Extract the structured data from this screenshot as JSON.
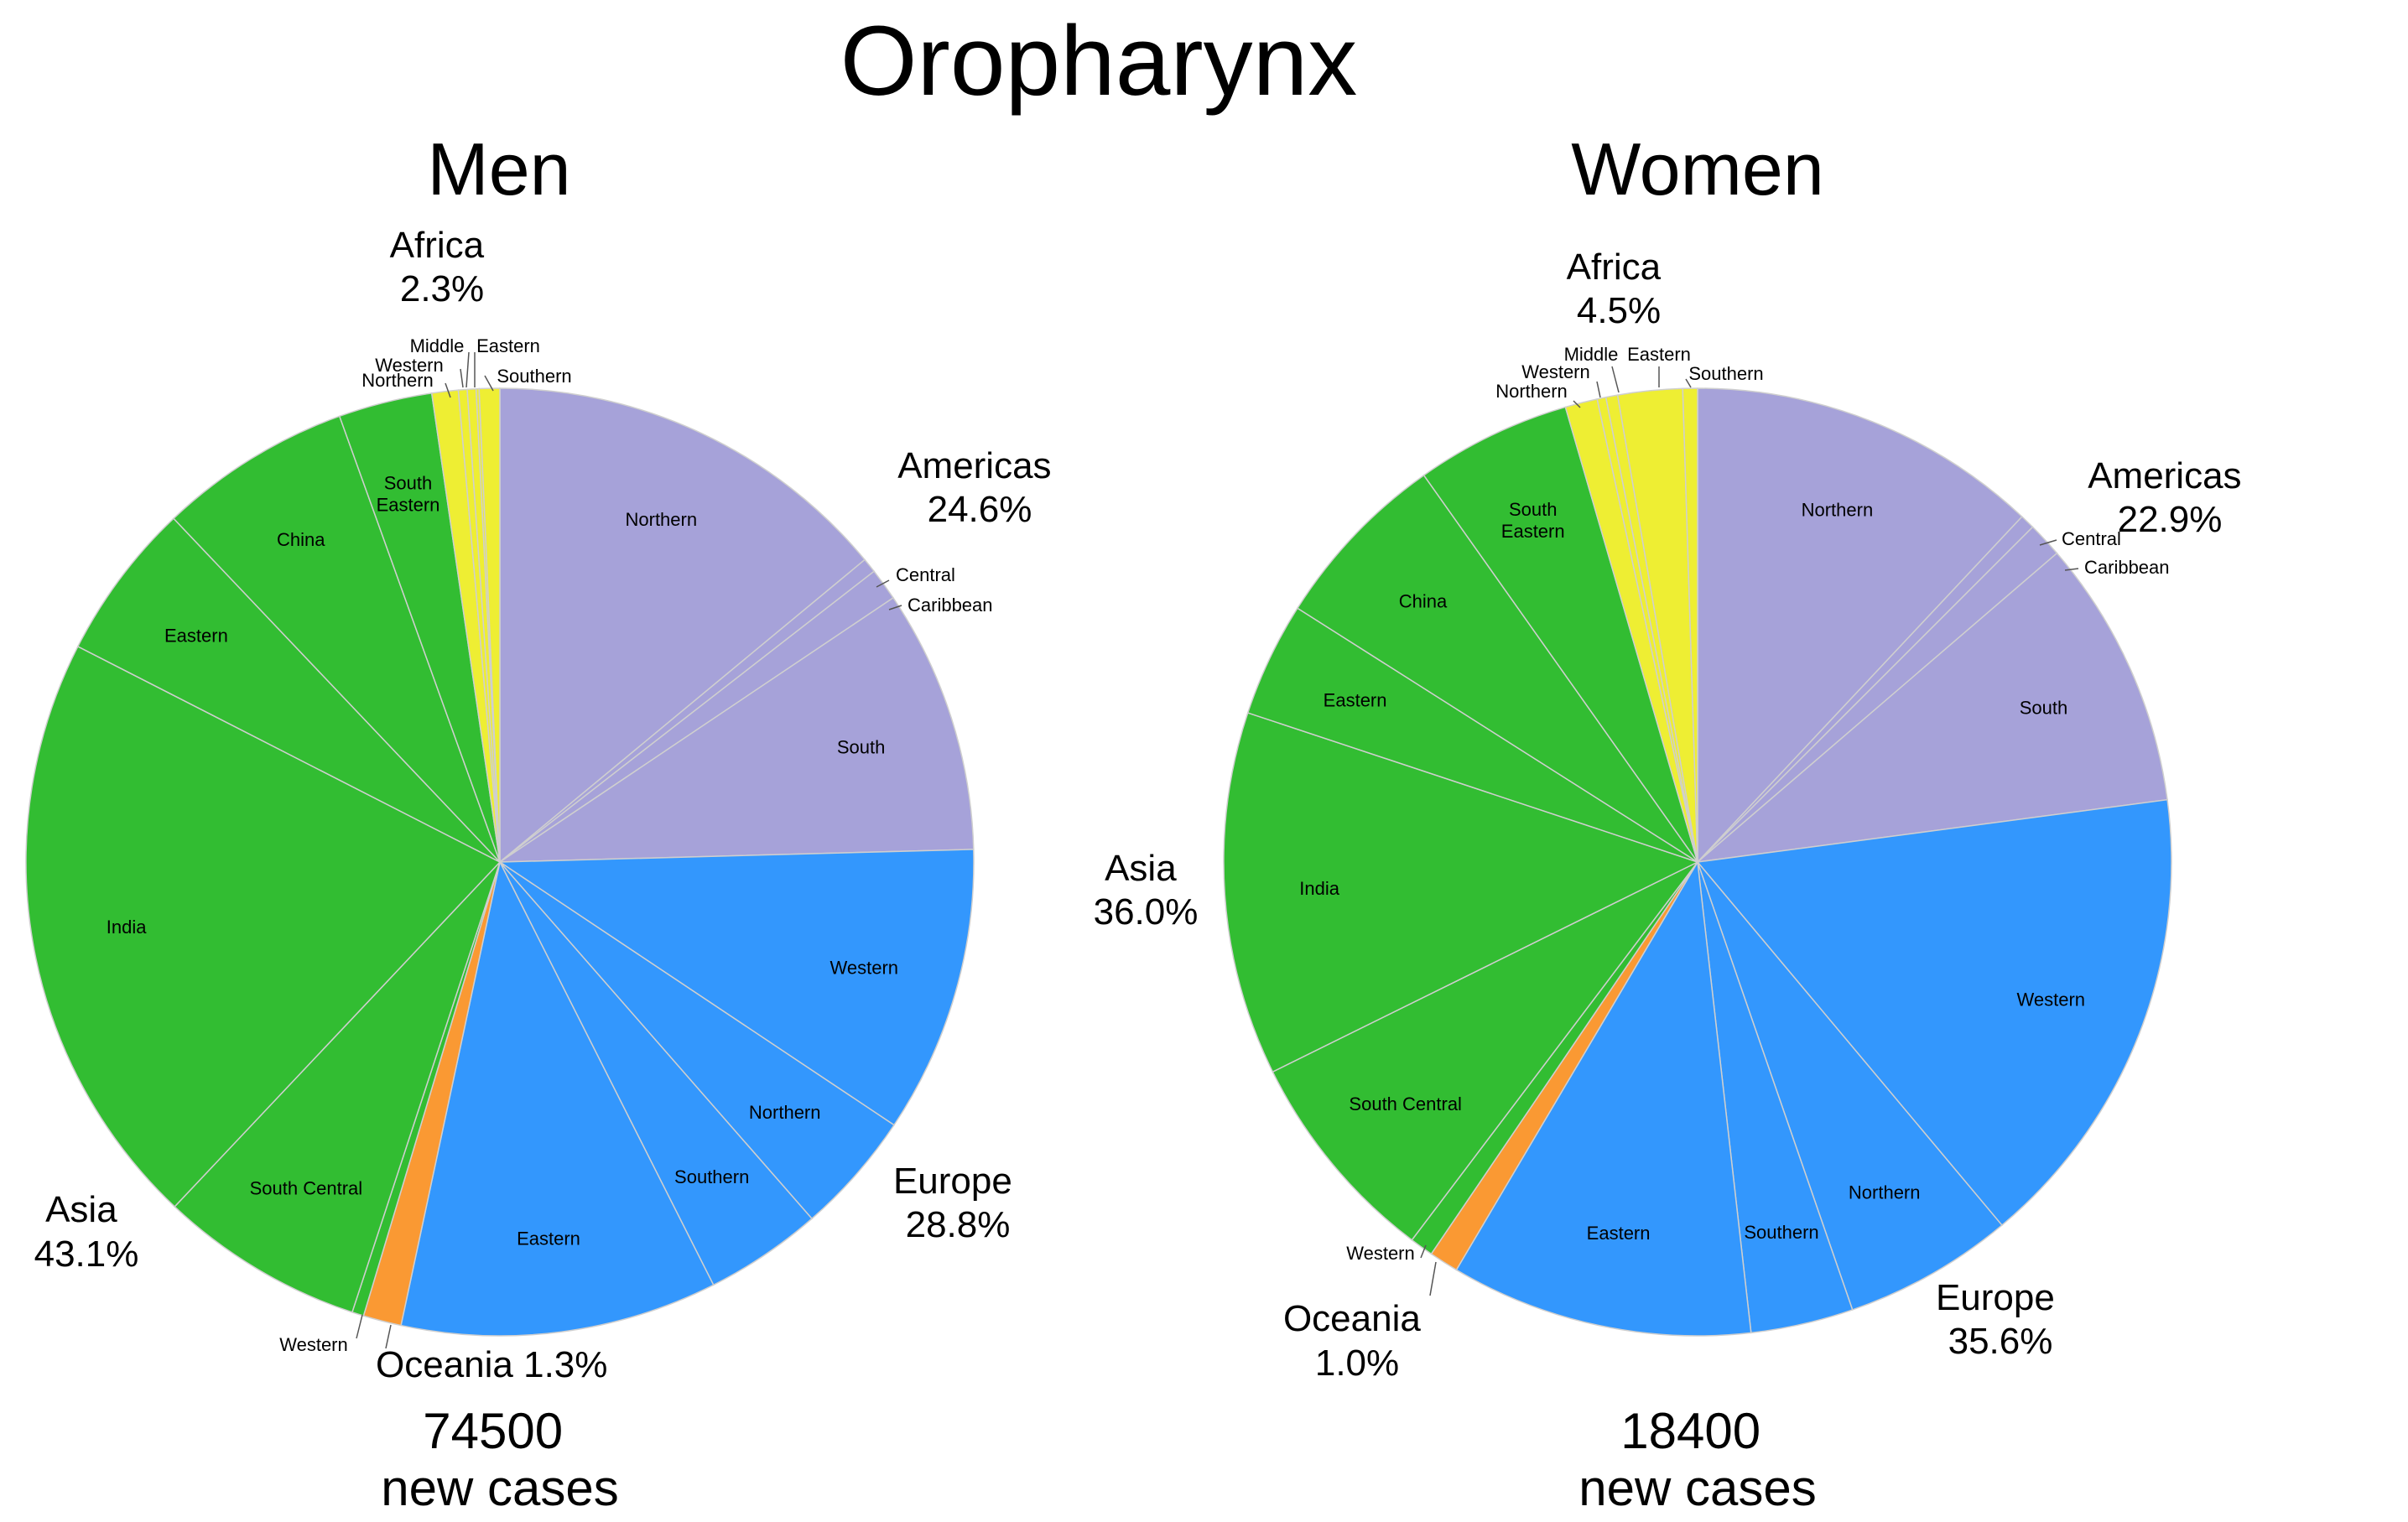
{
  "title": "Oropharynx",
  "colors": {
    "Africa": "#eeee33",
    "Americas": "#a6a2d9",
    "Europe": "#3397fd",
    "Oceania": "#fa9933",
    "Asia": "#32bd32",
    "separator": "#cfcfcf",
    "leader": "#555555"
  },
  "chart_data": [
    {
      "type": "pie",
      "title": "Men",
      "cases_number": "74500",
      "cases_label": "new cases",
      "start_angle_deg": 0,
      "direction": "clockwise",
      "regions": [
        {
          "name": "Africa",
          "label": "Africa",
          "pct": "2.3%"
        },
        {
          "name": "Americas",
          "label": "Americas",
          "pct": "24.6%"
        },
        {
          "name": "Europe",
          "label": "Europe",
          "pct": "28.8%"
        },
        {
          "name": "Oceania",
          "label": "Oceania 1.3%",
          "pct": ""
        },
        {
          "name": "Asia",
          "label": "Asia",
          "pct": "43.1%"
        }
      ],
      "slices": [
        {
          "region": "Americas",
          "label": "Northern",
          "value": 14.0
        },
        {
          "region": "Americas",
          "label": "Central",
          "value": 0.5
        },
        {
          "region": "Americas",
          "label": "Caribbean",
          "value": 1.1
        },
        {
          "region": "Americas",
          "label": "South",
          "value": 9.0
        },
        {
          "region": "Europe",
          "label": "Western",
          "value": 9.8
        },
        {
          "region": "Europe",
          "label": "Northern",
          "value": 4.2
        },
        {
          "region": "Europe",
          "label": "Southern",
          "value": 4.0
        },
        {
          "region": "Europe",
          "label": "Eastern",
          "value": 10.8
        },
        {
          "region": "Oceania",
          "label": "",
          "value": 1.3
        },
        {
          "region": "Asia",
          "label": "Western",
          "value": 0.4
        },
        {
          "region": "Asia",
          "label": "South Central",
          "value": 7.0
        },
        {
          "region": "Asia",
          "label": "India",
          "value": 20.5
        },
        {
          "region": "Asia",
          "label": "Eastern",
          "value": 5.4
        },
        {
          "region": "Asia",
          "label": "China",
          "value": 6.6
        },
        {
          "region": "Asia",
          "label": "South Eastern",
          "value": 3.2
        },
        {
          "region": "Africa",
          "label": "Northern",
          "value": 0.9
        },
        {
          "region": "Africa",
          "label": "Western",
          "value": 0.3
        },
        {
          "region": "Africa",
          "label": "Middle",
          "value": 0.3
        },
        {
          "region": "Africa",
          "label": "Eastern",
          "value": 0.1
        },
        {
          "region": "Africa",
          "label": "Southern",
          "value": 0.7
        }
      ]
    },
    {
      "type": "pie",
      "title": "Women",
      "cases_number": "18400",
      "cases_label": "new cases",
      "start_angle_deg": 0,
      "direction": "clockwise",
      "regions": [
        {
          "name": "Africa",
          "label": "Africa",
          "pct": "4.5%"
        },
        {
          "name": "Americas",
          "label": "Americas",
          "pct": "22.9%"
        },
        {
          "name": "Europe",
          "label": "Europe",
          "pct": "35.6%"
        },
        {
          "name": "Oceania",
          "label": "Oceania",
          "pct": "1.0%"
        },
        {
          "name": "Asia",
          "label": "Asia",
          "pct": "36.0%"
        }
      ],
      "slices": [
        {
          "region": "Americas",
          "label": "Northern",
          "value": 12.0
        },
        {
          "region": "Americas",
          "label": "Central",
          "value": 0.5
        },
        {
          "region": "Americas",
          "label": "Caribbean",
          "value": 1.2
        },
        {
          "region": "Americas",
          "label": "South",
          "value": 9.2
        },
        {
          "region": "Europe",
          "label": "Western",
          "value": 16.0
        },
        {
          "region": "Europe",
          "label": "Northern",
          "value": 5.8
        },
        {
          "region": "Europe",
          "label": "Southern",
          "value": 3.5
        },
        {
          "region": "Europe",
          "label": "Eastern",
          "value": 10.3
        },
        {
          "region": "Oceania",
          "label": "",
          "value": 1.0
        },
        {
          "region": "Asia",
          "label": "Western",
          "value": 0.8
        },
        {
          "region": "Asia",
          "label": "South Central",
          "value": 7.4
        },
        {
          "region": "Asia",
          "label": "India",
          "value": 12.4
        },
        {
          "region": "Asia",
          "label": "Eastern",
          "value": 3.9
        },
        {
          "region": "Asia",
          "label": "China",
          "value": 6.2
        },
        {
          "region": "Asia",
          "label": "South Eastern",
          "value": 5.3
        },
        {
          "region": "Africa",
          "label": "Northern",
          "value": 1.1
        },
        {
          "region": "Africa",
          "label": "Western",
          "value": 0.3
        },
        {
          "region": "Africa",
          "label": "Middle",
          "value": 0.4
        },
        {
          "region": "Africa",
          "label": "Eastern",
          "value": 2.2
        },
        {
          "region": "Africa",
          "label": "Southern",
          "value": 0.5
        }
      ]
    }
  ]
}
